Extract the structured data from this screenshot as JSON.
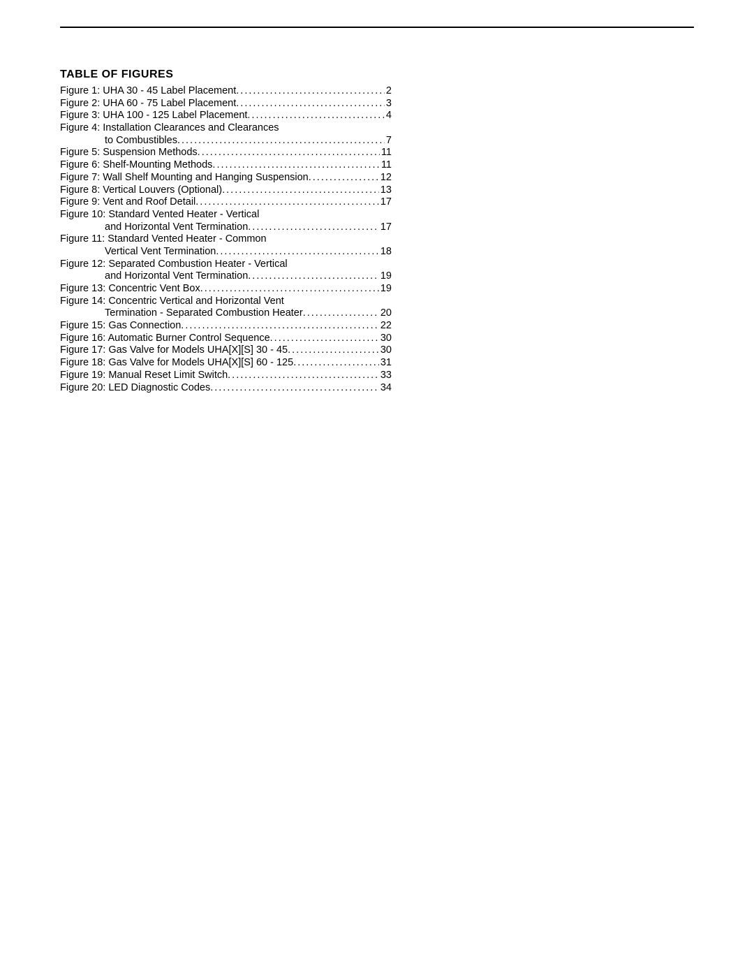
{
  "document": {
    "heading": "TABLE OF FIGURES",
    "heading_font_size_pt": 12,
    "body_font_size_pt": 11,
    "text_color": "#000000",
    "background_color": "#ffffff",
    "rule_color": "#000000",
    "entries": [
      {
        "label": "Figure 1: UHA 30 - 45 Label Placement",
        "continuation": null,
        "page": "2"
      },
      {
        "label": "Figure 2: UHA 60 - 75 Label Placement",
        "continuation": null,
        "page": "3"
      },
      {
        "label": "Figure 3: UHA 100 - 125 Label Placement",
        "continuation": null,
        "page": "4"
      },
      {
        "label": "Figure 4: Installation Clearances and Clearances",
        "continuation": "to Combustibles",
        "page": "7"
      },
      {
        "label": "Figure 5: Suspension Methods",
        "continuation": null,
        "page": "11"
      },
      {
        "label": "Figure 6: Shelf-Mounting Methods",
        "continuation": null,
        "page": "11"
      },
      {
        "label": "Figure 7: Wall Shelf Mounting and Hanging Suspension",
        "continuation": null,
        "page": "12"
      },
      {
        "label": "Figure 8: Vertical Louvers (Optional)",
        "continuation": null,
        "page": "13"
      },
      {
        "label": "Figure 9: Vent and Roof Detail",
        "continuation": null,
        "page": "17"
      },
      {
        "label": "Figure 10: Standard Vented Heater - Vertical",
        "continuation": "and Horizontal Vent Termination",
        "page": "17"
      },
      {
        "label": "Figure 11: Standard Vented Heater  - Common",
        "continuation": "Vertical Vent Termination",
        "page": "18"
      },
      {
        "label": "Figure 12: Separated Combustion Heater - Vertical",
        "continuation": "and Horizontal Vent Termination",
        "page": "19"
      },
      {
        "label": "Figure 13: Concentric Vent Box",
        "continuation": null,
        "page": "19"
      },
      {
        "label": "Figure 14: Concentric Vertical and Horizontal Vent",
        "continuation": "Termination - Separated Combustion Heater",
        "page": "20"
      },
      {
        "label": "Figure 15: Gas Connection",
        "continuation": null,
        "page": "22"
      },
      {
        "label": "Figure 16: Automatic Burner Control Sequence",
        "continuation": null,
        "page": "30"
      },
      {
        "label": "Figure 17: Gas Valve for Models UHA[X][S] 30 - 45",
        "continuation": null,
        "page": "30"
      },
      {
        "label": "Figure 18: Gas Valve for Models UHA[X][S] 60 - 125",
        "continuation": null,
        "page": "31"
      },
      {
        "label": "Figure 19: Manual Reset Limit Switch",
        "continuation": null,
        "page": "33"
      },
      {
        "label": "Figure 20: LED Diagnostic Codes",
        "continuation": null,
        "page": "34"
      }
    ]
  }
}
